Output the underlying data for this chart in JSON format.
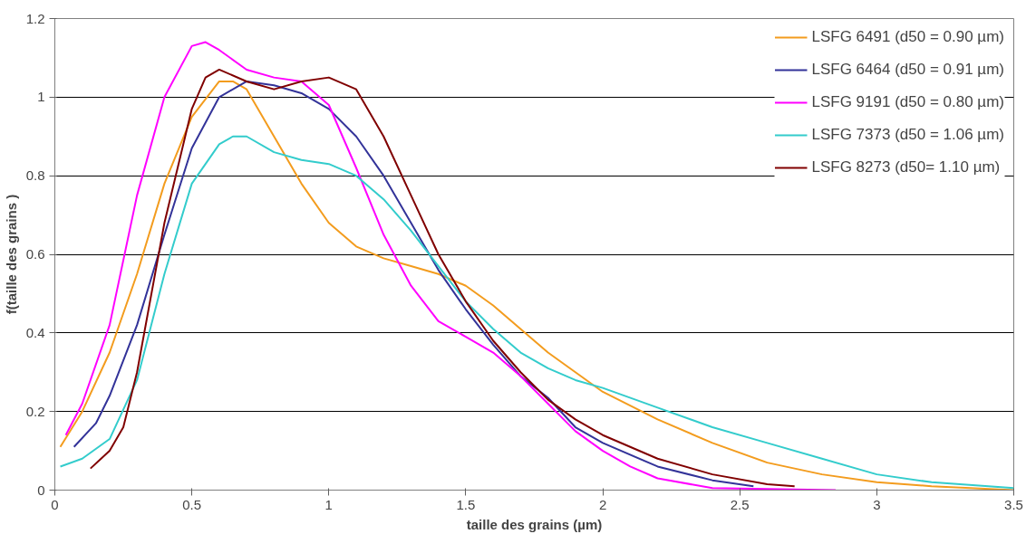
{
  "chart_data": {
    "type": "line",
    "xlabel": "taille des grains (µm)",
    "ylabel": "f(taille des grains )",
    "xlim": [
      0,
      3.5
    ],
    "xticks": [
      0,
      0.5,
      1,
      1.5,
      2,
      2.5,
      3,
      3.5
    ],
    "ylim": [
      0,
      1.2
    ],
    "yticks": [
      0,
      0.2,
      0.4,
      0.6,
      0.8,
      1,
      1.2
    ],
    "grid": "y",
    "legend": "top right",
    "line_style": "solid",
    "marker": "none",
    "series": [
      {
        "name": "LSFG 6491 (d50 = 0.90 µm)",
        "color": "#f39c1e",
        "x": [
          0.02,
          0.1,
          0.2,
          0.3,
          0.4,
          0.5,
          0.6,
          0.65,
          0.7,
          0.8,
          0.9,
          1.0,
          1.1,
          1.2,
          1.3,
          1.4,
          1.5,
          1.6,
          1.7,
          1.8,
          1.9,
          2.0,
          2.2,
          2.4,
          2.6,
          2.8,
          3.0,
          3.2,
          3.5
        ],
        "values": [
          0.11,
          0.2,
          0.35,
          0.55,
          0.78,
          0.95,
          1.04,
          1.04,
          1.02,
          0.9,
          0.78,
          0.68,
          0.62,
          0.59,
          0.57,
          0.55,
          0.52,
          0.47,
          0.41,
          0.35,
          0.3,
          0.25,
          0.18,
          0.12,
          0.07,
          0.04,
          0.02,
          0.01,
          0.0
        ]
      },
      {
        "name": "LSFG 6464 (d50 = 0.91 µm)",
        "color": "#333399",
        "x": [
          0.07,
          0.15,
          0.2,
          0.3,
          0.4,
          0.5,
          0.6,
          0.7,
          0.8,
          0.9,
          1.0,
          1.1,
          1.2,
          1.3,
          1.4,
          1.5,
          1.6,
          1.7,
          1.8,
          1.9,
          2.0,
          2.2,
          2.4,
          2.55
        ],
        "values": [
          0.11,
          0.17,
          0.24,
          0.42,
          0.65,
          0.87,
          1.0,
          1.04,
          1.03,
          1.01,
          0.97,
          0.9,
          0.8,
          0.68,
          0.56,
          0.46,
          0.37,
          0.29,
          0.235,
          0.16,
          0.12,
          0.06,
          0.025,
          0.01
        ]
      },
      {
        "name": "LSFG 9191 (d50 = 0.80 µm)",
        "color": "#ff00ff",
        "x": [
          0.04,
          0.1,
          0.2,
          0.3,
          0.4,
          0.5,
          0.55,
          0.6,
          0.7,
          0.8,
          0.9,
          1.0,
          1.1,
          1.2,
          1.3,
          1.4,
          1.5,
          1.6,
          1.7,
          1.8,
          1.9,
          2.0,
          2.1,
          2.2,
          2.4,
          2.85
        ],
        "values": [
          0.14,
          0.22,
          0.42,
          0.75,
          1.0,
          1.13,
          1.14,
          1.12,
          1.07,
          1.05,
          1.04,
          0.98,
          0.82,
          0.65,
          0.52,
          0.43,
          0.39,
          0.35,
          0.29,
          0.22,
          0.15,
          0.1,
          0.06,
          0.03,
          0.005,
          0.0
        ]
      },
      {
        "name": "LSFG 7373 (d50 = 1.06 µm)",
        "color": "#33cccc",
        "x": [
          0.02,
          0.1,
          0.2,
          0.3,
          0.4,
          0.5,
          0.6,
          0.65,
          0.7,
          0.8,
          0.9,
          1.0,
          1.1,
          1.2,
          1.3,
          1.4,
          1.5,
          1.6,
          1.7,
          1.8,
          1.9,
          2.0,
          2.2,
          2.4,
          2.6,
          2.8,
          3.0,
          3.2,
          3.5
        ],
        "values": [
          0.06,
          0.08,
          0.13,
          0.28,
          0.55,
          0.78,
          0.88,
          0.9,
          0.9,
          0.86,
          0.84,
          0.83,
          0.8,
          0.74,
          0.66,
          0.57,
          0.48,
          0.41,
          0.35,
          0.31,
          0.28,
          0.26,
          0.21,
          0.16,
          0.12,
          0.08,
          0.04,
          0.02,
          0.005
        ]
      },
      {
        "name": "LSFG 8273 (d50= 1.10 µm)",
        "color": "#800000",
        "x": [
          0.13,
          0.2,
          0.25,
          0.3,
          0.4,
          0.5,
          0.55,
          0.6,
          0.7,
          0.8,
          0.9,
          1.0,
          1.1,
          1.2,
          1.3,
          1.4,
          1.5,
          1.6,
          1.7,
          1.8,
          1.9,
          2.0,
          2.2,
          2.4,
          2.6,
          2.7
        ],
        "values": [
          0.055,
          0.1,
          0.16,
          0.3,
          0.68,
          0.97,
          1.05,
          1.07,
          1.04,
          1.02,
          1.04,
          1.05,
          1.02,
          0.9,
          0.75,
          0.6,
          0.48,
          0.38,
          0.3,
          0.23,
          0.18,
          0.14,
          0.08,
          0.04,
          0.015,
          0.01
        ]
      }
    ]
  }
}
